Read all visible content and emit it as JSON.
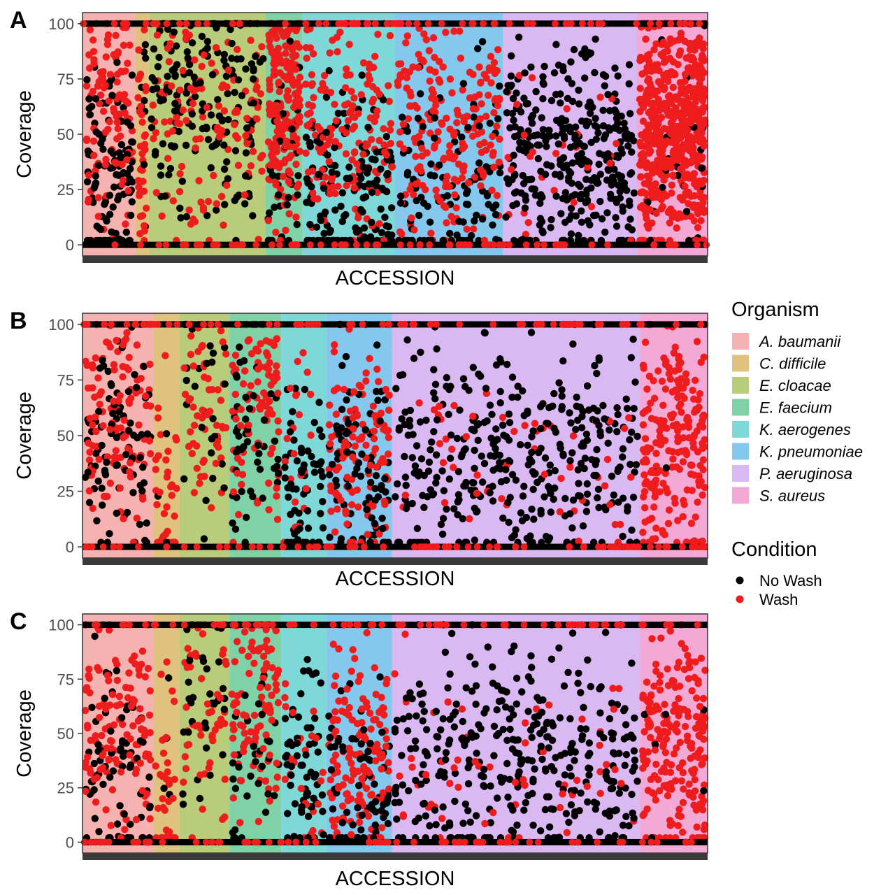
{
  "colors": {
    "organisms": [
      "#f4b3b1",
      "#dfc27d",
      "#b9cc7a",
      "#7fd1a6",
      "#7fd8d8",
      "#84c8ee",
      "#dab8f2",
      "#f3a9d6"
    ],
    "no_wash": "#000000",
    "wash": "#ee1c1c",
    "axis_strip": "#3a3a3a"
  },
  "legend": {
    "organism_title": "Organism",
    "organisms": [
      "A. baumanii",
      "C. difficile",
      "E. cloacae",
      "E. faecium",
      "K. aerogenes",
      "K. pneumoniae",
      "P. aeruginosa",
      "S. aureus"
    ],
    "condition_title": "Condition",
    "conditions": [
      "No Wash",
      "Wash"
    ]
  },
  "chart_data": [
    {
      "panel": "A",
      "type": "scatter",
      "xlabel": "ACCESSION",
      "ylabel": "Coverage",
      "ylim": [
        -5,
        105
      ],
      "yticks": [
        "0",
        "25",
        "50",
        "75",
        "100"
      ],
      "organism_spans": [
        {
          "organism": "A. baumanii",
          "from": 0.0,
          "to": 0.085
        },
        {
          "organism": "C. difficile",
          "from": 0.085,
          "to": 0.106
        },
        {
          "organism": "E. cloacae",
          "from": 0.106,
          "to": 0.293
        },
        {
          "organism": "E. faecium",
          "from": 0.293,
          "to": 0.352
        },
        {
          "organism": "K. aerogenes",
          "from": 0.352,
          "to": 0.5
        },
        {
          "organism": "K. pneumoniae",
          "from": 0.5,
          "to": 0.673
        },
        {
          "organism": "P. aeruginosa",
          "from": 0.673,
          "to": 0.887
        },
        {
          "organism": "S. aureus",
          "from": 0.887,
          "to": 1.0
        }
      ],
      "groups": [
        {
          "from": 0.0,
          "to": 0.085,
          "wash": 0.5,
          "nowash": 0.5,
          "n": 230,
          "washMean": 60,
          "nowashMean": 30
        },
        {
          "from": 0.085,
          "to": 0.106,
          "wash": 0.8,
          "nowash": 0.2,
          "n": 45,
          "washMean": 50,
          "nowashMean": 40
        },
        {
          "from": 0.106,
          "to": 0.293,
          "wash": 0.45,
          "nowash": 0.55,
          "n": 320,
          "washMean": 60,
          "nowashMean": 65
        },
        {
          "from": 0.293,
          "to": 0.352,
          "wash": 0.85,
          "nowash": 0.15,
          "n": 260,
          "washMean": 70,
          "nowashMean": 30
        },
        {
          "from": 0.352,
          "to": 0.5,
          "wash": 0.55,
          "nowash": 0.45,
          "n": 330,
          "washMean": 55,
          "nowashMean": 25
        },
        {
          "from": 0.5,
          "to": 0.673,
          "wash": 0.7,
          "nowash": 0.3,
          "n": 330,
          "washMean": 55,
          "nowashMean": 25
        },
        {
          "from": 0.673,
          "to": 0.887,
          "wash": 0.1,
          "nowash": 0.9,
          "n": 380,
          "washMean": 40,
          "nowashMean": 40
        },
        {
          "from": 0.887,
          "to": 1.0,
          "wash": 0.95,
          "nowash": 0.05,
          "n": 600,
          "washMean": 55,
          "nowashMean": 40
        }
      ]
    },
    {
      "panel": "B",
      "type": "scatter",
      "xlabel": "ACCESSION",
      "ylabel": "Coverage",
      "ylim": [
        -5,
        105
      ],
      "yticks": [
        "0",
        "25",
        "50",
        "75",
        "100"
      ],
      "organism_spans": [
        {
          "organism": "A. baumanii",
          "from": 0.0,
          "to": 0.113
        },
        {
          "organism": "C. difficile",
          "from": 0.113,
          "to": 0.155
        },
        {
          "organism": "E. cloacae",
          "from": 0.155,
          "to": 0.235
        },
        {
          "organism": "E. faecium",
          "from": 0.235,
          "to": 0.318
        },
        {
          "organism": "K. aerogenes",
          "from": 0.318,
          "to": 0.39
        },
        {
          "organism": "K. pneumoniae",
          "from": 0.39,
          "to": 0.495
        },
        {
          "organism": "P. aeruginosa",
          "from": 0.495,
          "to": 0.892
        },
        {
          "organism": "S. aureus",
          "from": 0.892,
          "to": 1.0
        }
      ],
      "groups": [
        {
          "from": 0.0,
          "to": 0.113,
          "wash": 0.55,
          "nowash": 0.45,
          "n": 200,
          "washMean": 55,
          "nowashMean": 35
        },
        {
          "from": 0.113,
          "to": 0.155,
          "wash": 0.9,
          "nowash": 0.1,
          "n": 40,
          "washMean": 20,
          "nowashMean": 25
        },
        {
          "from": 0.155,
          "to": 0.235,
          "wash": 0.65,
          "nowash": 0.35,
          "n": 90,
          "washMean": 70,
          "nowashMean": 60
        },
        {
          "from": 0.235,
          "to": 0.318,
          "wash": 0.7,
          "nowash": 0.3,
          "n": 150,
          "washMean": 65,
          "nowashMean": 40
        },
        {
          "from": 0.318,
          "to": 0.39,
          "wash": 0.3,
          "nowash": 0.7,
          "n": 90,
          "washMean": 40,
          "nowashMean": 30
        },
        {
          "from": 0.39,
          "to": 0.495,
          "wash": 0.6,
          "nowash": 0.4,
          "n": 220,
          "washMean": 45,
          "nowashMean": 35
        },
        {
          "from": 0.495,
          "to": 0.892,
          "wash": 0.12,
          "nowash": 0.88,
          "n": 420,
          "washMean": 35,
          "nowashMean": 40
        },
        {
          "from": 0.892,
          "to": 1.0,
          "wash": 0.97,
          "nowash": 0.03,
          "n": 220,
          "washMean": 45,
          "nowashMean": 50
        }
      ]
    },
    {
      "panel": "C",
      "type": "scatter",
      "xlabel": "ACCESSION",
      "ylabel": "Coverage",
      "ylim": [
        -5,
        105
      ],
      "yticks": [
        "0",
        "25",
        "50",
        "75",
        "100"
      ],
      "organism_spans": [
        {
          "organism": "A. baumanii",
          "from": 0.0,
          "to": 0.113
        },
        {
          "organism": "C. difficile",
          "from": 0.113,
          "to": 0.155
        },
        {
          "organism": "E. cloacae",
          "from": 0.155,
          "to": 0.235
        },
        {
          "organism": "E. faecium",
          "from": 0.235,
          "to": 0.318
        },
        {
          "organism": "K. aerogenes",
          "from": 0.318,
          "to": 0.39
        },
        {
          "organism": "K. pneumoniae",
          "from": 0.39,
          "to": 0.495
        },
        {
          "organism": "P. aeruginosa",
          "from": 0.495,
          "to": 0.892
        },
        {
          "organism": "S. aureus",
          "from": 0.892,
          "to": 1.0
        }
      ],
      "groups": [
        {
          "from": 0.0,
          "to": 0.113,
          "wash": 0.6,
          "nowash": 0.4,
          "n": 200,
          "washMean": 55,
          "nowashMean": 35
        },
        {
          "from": 0.113,
          "to": 0.155,
          "wash": 0.9,
          "nowash": 0.1,
          "n": 40,
          "washMean": 25,
          "nowashMean": 25
        },
        {
          "from": 0.155,
          "to": 0.235,
          "wash": 0.65,
          "nowash": 0.35,
          "n": 90,
          "washMean": 70,
          "nowashMean": 60
        },
        {
          "from": 0.235,
          "to": 0.318,
          "wash": 0.75,
          "nowash": 0.25,
          "n": 150,
          "washMean": 65,
          "nowashMean": 40
        },
        {
          "from": 0.318,
          "to": 0.39,
          "wash": 0.3,
          "nowash": 0.7,
          "n": 90,
          "washMean": 40,
          "nowashMean": 30
        },
        {
          "from": 0.39,
          "to": 0.495,
          "wash": 0.65,
          "nowash": 0.35,
          "n": 220,
          "washMean": 40,
          "nowashMean": 30
        },
        {
          "from": 0.495,
          "to": 0.892,
          "wash": 0.12,
          "nowash": 0.88,
          "n": 420,
          "washMean": 35,
          "nowashMean": 40
        },
        {
          "from": 0.892,
          "to": 1.0,
          "wash": 0.97,
          "nowash": 0.03,
          "n": 220,
          "washMean": 45,
          "nowashMean": 50
        }
      ]
    }
  ]
}
